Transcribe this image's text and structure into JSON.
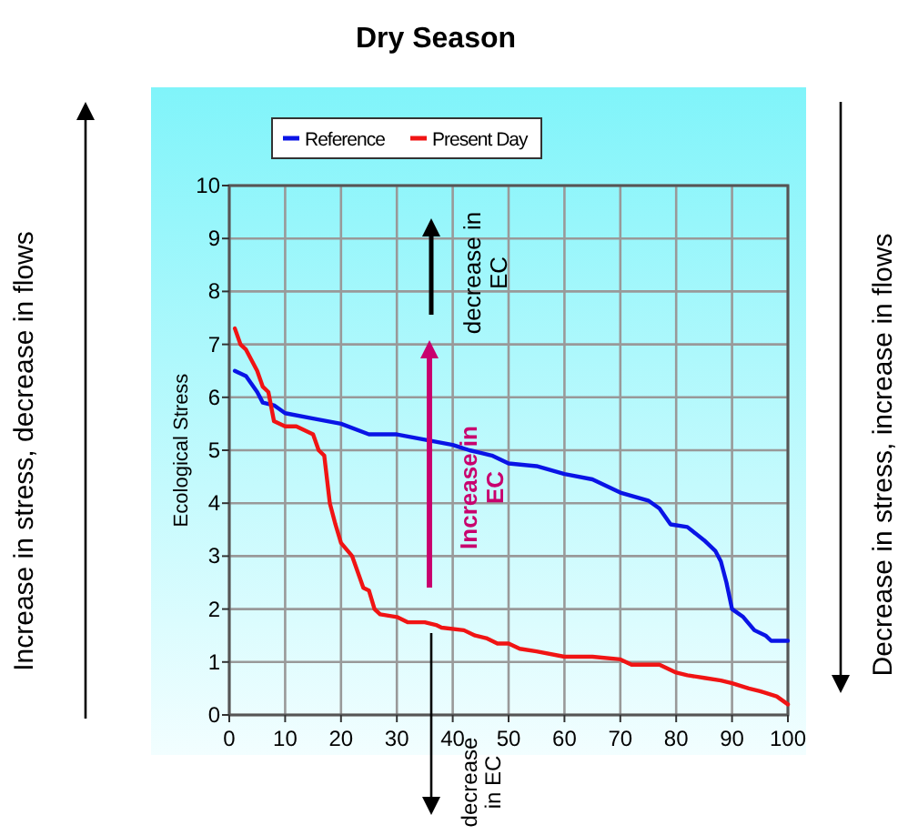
{
  "chart_data": {
    "type": "line",
    "title": "Dry Season",
    "ylabel": "Ecological Stress",
    "xlim": [
      0,
      100
    ],
    "xticks": [
      0,
      10,
      20,
      30,
      40,
      50,
      60,
      70,
      80,
      90,
      100
    ],
    "ylim": [
      0,
      10
    ],
    "yticks": [
      0,
      1,
      2,
      3,
      4,
      5,
      6,
      7,
      8,
      9,
      10
    ],
    "grid": true,
    "legend": "top",
    "marker": "none",
    "line_style": "solid",
    "series": [
      {
        "name": "Reference",
        "color": "#0a14e6",
        "x": [
          1,
          3,
          5,
          6,
          8,
          10,
          15,
          20,
          25,
          30,
          35,
          40,
          43,
          45,
          47,
          50,
          55,
          60,
          65,
          70,
          75,
          77,
          79,
          82,
          85,
          87,
          88,
          89,
          90,
          92,
          94,
          96,
          97,
          100
        ],
        "values": [
          6.5,
          6.4,
          6.1,
          5.9,
          5.85,
          5.7,
          5.6,
          5.5,
          5.3,
          5.3,
          5.2,
          5.1,
          5.0,
          4.95,
          4.9,
          4.75,
          4.7,
          4.55,
          4.45,
          4.2,
          4.05,
          3.9,
          3.6,
          3.55,
          3.3,
          3.1,
          2.9,
          2.5,
          2.0,
          1.85,
          1.6,
          1.5,
          1.4,
          1.4
        ]
      },
      {
        "name": "Present Day",
        "color": "#f01414",
        "x": [
          1,
          2,
          3,
          5,
          6,
          7,
          8,
          10,
          12,
          15,
          16,
          17,
          18,
          19,
          20,
          22,
          24,
          25,
          26,
          27,
          30,
          32,
          35,
          37,
          38,
          42,
          44,
          46,
          48,
          50,
          52,
          55,
          60,
          65,
          70,
          72,
          77,
          80,
          82,
          85,
          88,
          90,
          93,
          95,
          98,
          100
        ],
        "values": [
          7.3,
          7.0,
          6.9,
          6.5,
          6.2,
          6.1,
          5.55,
          5.45,
          5.45,
          5.3,
          5.0,
          4.9,
          4.0,
          3.6,
          3.25,
          3.0,
          2.4,
          2.35,
          2.0,
          1.9,
          1.85,
          1.75,
          1.75,
          1.7,
          1.65,
          1.6,
          1.5,
          1.45,
          1.35,
          1.35,
          1.25,
          1.2,
          1.1,
          1.1,
          1.05,
          0.95,
          0.95,
          0.8,
          0.75,
          0.7,
          0.65,
          0.6,
          0.5,
          0.45,
          0.35,
          0.2
        ]
      }
    ],
    "annotations": [
      "Increase in stress, decrease in flows",
      "Decrease in stress, increase in flows",
      "decrease in\nEC",
      "Increase in\nEC",
      "decrease\nin EC"
    ]
  }
}
